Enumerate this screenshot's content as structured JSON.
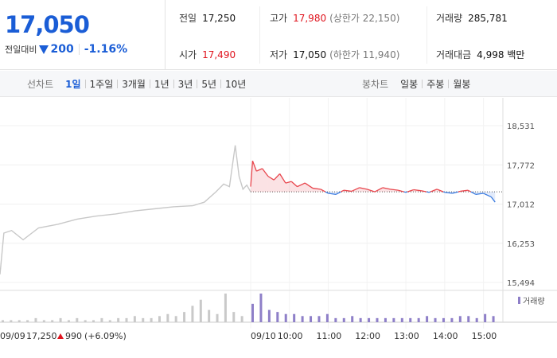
{
  "quote": {
    "price": "17,050",
    "change_label": "전일대비",
    "change_abs": "200",
    "change_pct": "-1.16%",
    "direction": "down",
    "color_down": "#1a5dd6",
    "color_up": "#e0141e",
    "prev_close_label": "전일",
    "prev_close": "17,250",
    "high_label": "고가",
    "high": "17,980",
    "upper_limit_label": "(상한가 22,150)",
    "volume_label": "거래량",
    "volume": "285,781",
    "open_label": "시가",
    "open": "17,490",
    "low_label": "저가",
    "low": "17,050",
    "lower_limit_label": "(하한가 11,940)",
    "turnover_label": "거래대금",
    "turnover": "4,998 백만"
  },
  "line_periods": {
    "label": "선차트",
    "items": [
      "1일",
      "1주일",
      "3개월",
      "1년",
      "3년",
      "5년",
      "10년"
    ],
    "active": "1일"
  },
  "candle_periods": {
    "label": "봉차트",
    "items": [
      "일봉",
      "주봉",
      "월봉"
    ]
  },
  "chart_data": {
    "type": "line",
    "y_ticks": [
      "18,531",
      "17,772",
      "17,012",
      "16,253",
      "15,494"
    ],
    "ylim": [
      15494,
      18531
    ],
    "x_ticks": [
      "09/10",
      "10:00",
      "11:00",
      "12:00",
      "13:00",
      "14:00",
      "15:00"
    ],
    "baseline": 17250,
    "prev_day_label": "09/09",
    "prev_day_close": "17,250",
    "prev_day_change": "990",
    "prev_day_pct": "(+6.09%)",
    "volume_legend": "거래량",
    "prev_day": {
      "x_hours": [
        9.0,
        9.1,
        9.3,
        9.6,
        10.0,
        10.5,
        11.0,
        11.5,
        12.0,
        12.5,
        13.0,
        13.5,
        14.0,
        14.3,
        14.6,
        14.8,
        14.95,
        15.1,
        15.2,
        15.3,
        15.4,
        15.5
      ],
      "values": [
        15650,
        16450,
        16500,
        16320,
        16550,
        16620,
        16720,
        16780,
        16820,
        16880,
        16920,
        16960,
        16980,
        17050,
        17250,
        17400,
        17350,
        18150,
        17550,
        17300,
        17380,
        17250
      ]
    },
    "today": {
      "x_hours": [
        9.0,
        9.05,
        9.15,
        9.3,
        9.45,
        9.6,
        9.75,
        9.9,
        10.05,
        10.2,
        10.4,
        10.6,
        10.8,
        11.0,
        11.2,
        11.4,
        11.6,
        11.8,
        12.0,
        12.2,
        12.4,
        12.6,
        12.8,
        13.0,
        13.2,
        13.4,
        13.6,
        13.8,
        14.0,
        14.2,
        14.4,
        14.6,
        14.8,
        15.0,
        15.2,
        15.3
      ],
      "values": [
        17350,
        17850,
        17650,
        17700,
        17550,
        17480,
        17600,
        17420,
        17450,
        17350,
        17420,
        17320,
        17300,
        17220,
        17200,
        17280,
        17260,
        17330,
        17300,
        17250,
        17330,
        17300,
        17280,
        17240,
        17290,
        17270,
        17240,
        17300,
        17240,
        17220,
        17260,
        17280,
        17200,
        17220,
        17150,
        17050
      ]
    },
    "volume_prev": [
      1,
      1,
      1,
      1,
      2,
      1,
      1,
      2,
      1,
      2,
      1,
      1,
      2,
      1,
      2,
      2,
      3,
      2,
      2,
      3,
      4,
      3,
      5,
      8,
      11,
      6,
      4,
      14,
      5,
      3
    ],
    "volume_today": [
      9,
      14,
      6,
      5,
      4,
      4,
      3,
      3,
      3,
      4,
      2,
      2,
      3,
      2,
      2,
      2,
      2,
      2,
      2,
      2,
      2,
      3,
      2,
      2,
      2,
      3,
      3,
      2,
      4,
      3
    ]
  }
}
